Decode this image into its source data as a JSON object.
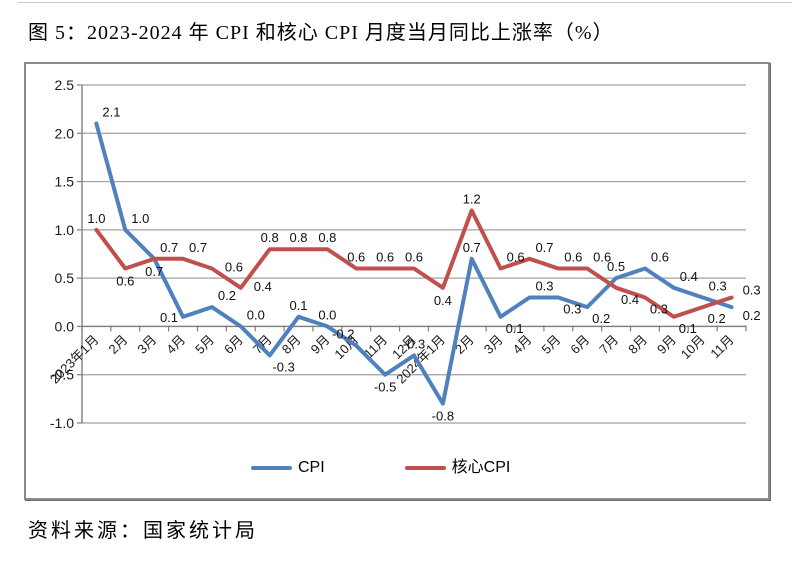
{
  "document": {
    "title": "图 5：2023-2024 年 CPI 和核心 CPI 月度当月同比上涨率（%）",
    "source_note": "资料来源：国家统计局"
  },
  "colors": {
    "cpi_line": "#4F81BD",
    "core_cpi_line": "#C0504D",
    "gridline": "#A0A0A0",
    "axis": "#7F7F7F",
    "chart_border": "#8A8A8A",
    "data_label": "#111111",
    "tick_label": "#1A1A1A"
  },
  "legend": {
    "items": [
      {
        "label": "CPI",
        "series": "cpi"
      },
      {
        "label": "核心CPI",
        "series": "core_cpi"
      }
    ]
  },
  "chart_data": {
    "type": "line",
    "title": "图 5：2023-2024 年 CPI 和核心 CPI 月度当月同比上涨率（%）",
    "categories": [
      "2023年1月",
      "2月",
      "3月",
      "4月",
      "5月",
      "6月",
      "7月",
      "8月",
      "9月",
      "10月",
      "11月",
      "12月",
      "2024年1月",
      "2月",
      "3月",
      "4月",
      "5月",
      "6月",
      "7月",
      "8月",
      "9月",
      "10月",
      "11月"
    ],
    "series": [
      {
        "name": "CPI",
        "color": "#4F81BD",
        "values": [
          2.1,
          1.0,
          0.7,
          0.1,
          0.2,
          0.0,
          -0.3,
          0.1,
          0.0,
          -0.2,
          -0.5,
          -0.3,
          -0.8,
          0.7,
          0.1,
          0.3,
          0.3,
          0.2,
          0.5,
          0.6,
          0.4,
          0.3,
          0.2
        ],
        "label_positions": [
          "above-right",
          "above-right",
          "below",
          "left",
          "above-right",
          "above-right",
          "below-right",
          "above",
          "above",
          "above-left",
          "below",
          "above",
          "below",
          "above",
          "below-right",
          "above-right",
          "below-right",
          "below-right",
          "above",
          "above-right",
          "above-right",
          "above-right",
          "right-below"
        ]
      },
      {
        "name": "核心CPI",
        "color": "#C0504D",
        "values": [
          1.0,
          0.6,
          0.7,
          0.7,
          0.6,
          0.4,
          0.8,
          0.8,
          0.8,
          0.6,
          0.6,
          0.6,
          0.4,
          1.2,
          0.6,
          0.7,
          0.6,
          0.6,
          0.4,
          0.3,
          0.1,
          0.2,
          0.3
        ],
        "label_positions": [
          "above",
          "below",
          "above-right",
          "above-right",
          "right",
          "right",
          "above",
          "above",
          "above",
          "above",
          "above",
          "above",
          "below",
          "above",
          "above-right",
          "above-right",
          "above-right",
          "above-right",
          "below-right",
          "below-right",
          "below-right",
          "below-right",
          "right-above"
        ]
      }
    ],
    "ylim": [
      -1.0,
      2.5
    ],
    "ytick_step": 0.5,
    "ytick_labels": [
      "2.5",
      "2.0",
      "1.5",
      "1.0",
      "0.5",
      "0.0",
      "-0.5",
      "-1.0"
    ],
    "xlabel": "",
    "ylabel": "",
    "grid": true,
    "value_labels": true,
    "value_label_decimals": 1,
    "legend_position": "bottom"
  }
}
